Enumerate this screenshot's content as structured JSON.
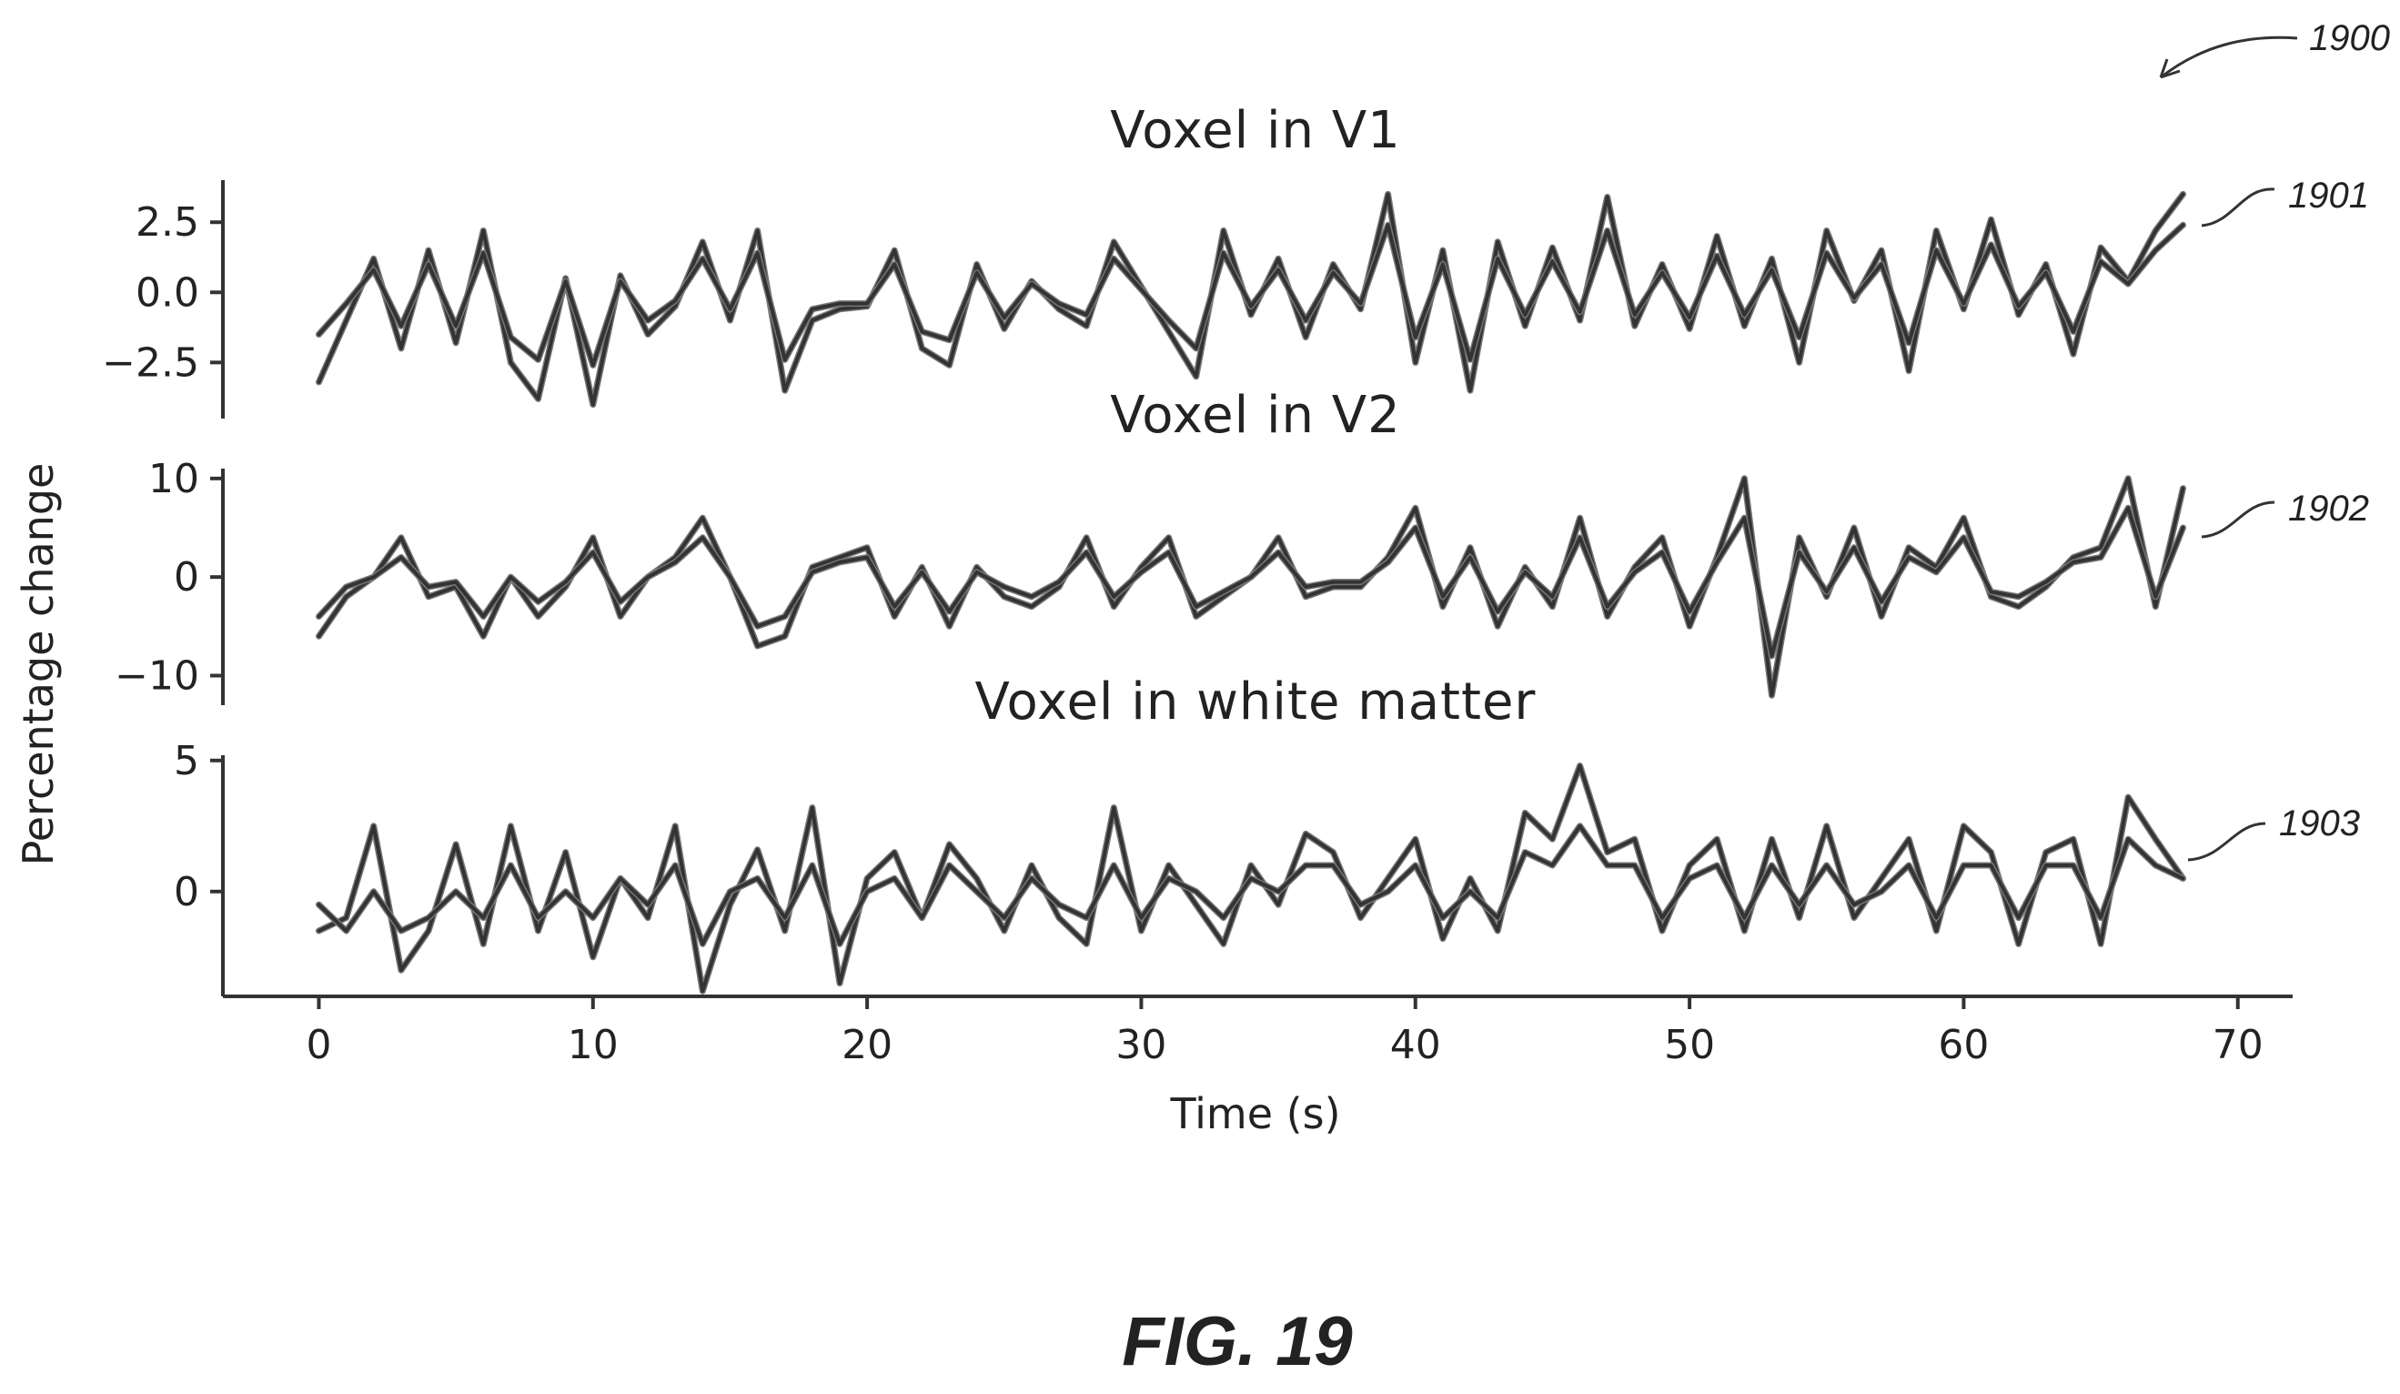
{
  "figure": {
    "caption": "FIG. 19",
    "ref_main": "1900",
    "ylabel": "Percentage change",
    "xlabel": "Time (s)"
  },
  "chart_data": [
    {
      "type": "line",
      "title": "Voxel in V1",
      "ref": "1901",
      "xlabel": "",
      "ylabel": "Percentage change",
      "xlim": [
        -3.5,
        72
      ],
      "ylim": [
        -4.5,
        4.0
      ],
      "yticks": [
        2.5,
        0.0,
        -2.5
      ],
      "ytick_labels": [
        "2.5",
        "0.0",
        "−2.5"
      ],
      "series": [
        {
          "x": [
            0,
            1,
            2,
            3,
            4,
            5,
            6,
            7,
            8,
            9,
            10,
            11,
            12,
            13,
            14,
            15,
            16,
            17,
            18,
            19,
            20,
            21,
            22,
            23,
            24,
            25,
            26,
            27,
            28,
            29,
            30,
            31,
            32,
            33,
            34,
            35,
            36,
            37,
            38,
            39,
            40,
            41,
            42,
            43,
            44,
            45,
            46,
            47,
            48,
            49,
            50,
            51,
            52,
            53,
            54,
            55,
            56,
            57,
            58,
            59,
            60,
            61,
            62,
            63,
            64,
            65,
            66,
            67,
            68
          ],
          "y": [
            -3.2,
            -1.0,
            1.2,
            -2.0,
            1.5,
            -1.8,
            2.2,
            -2.5,
            -3.8,
            0.5,
            -4.0,
            0.6,
            -1.5,
            -0.5,
            1.8,
            -1.0,
            2.2,
            -3.5,
            -1.0,
            -0.6,
            -0.5,
            1.5,
            -2.0,
            -2.6,
            1.0,
            -1.3,
            0.4,
            -0.6,
            -1.2,
            1.8,
            0.2,
            -1.4,
            -3.0,
            2.2,
            -0.8,
            1.2,
            -1.6,
            1.0,
            -0.6,
            3.5,
            -2.5,
            1.5,
            -3.5,
            1.8,
            -1.2,
            1.6,
            -1.0,
            3.4,
            -1.2,
            1.0,
            -1.3,
            2.0,
            -1.2,
            1.2,
            -2.5,
            2.2,
            -0.3,
            1.5,
            -2.8,
            2.2,
            -0.6,
            2.6,
            -0.8,
            1.0,
            -2.2,
            1.6,
            0.4,
            2.2,
            3.5
          ]
        },
        {
          "x": [
            0,
            1,
            2,
            3,
            4,
            5,
            6,
            7,
            8,
            9,
            10,
            11,
            12,
            13,
            14,
            15,
            16,
            17,
            18,
            19,
            20,
            21,
            22,
            23,
            24,
            25,
            26,
            27,
            28,
            29,
            30,
            31,
            32,
            33,
            34,
            35,
            36,
            37,
            38,
            39,
            40,
            41,
            42,
            43,
            44,
            45,
            46,
            47,
            48,
            49,
            50,
            51,
            52,
            53,
            54,
            55,
            56,
            57,
            58,
            59,
            60,
            61,
            62,
            63,
            64,
            65,
            66,
            67,
            68
          ],
          "y": [
            -1.5,
            -0.4,
            0.8,
            -1.2,
            1.0,
            -1.2,
            1.4,
            -1.6,
            -2.4,
            0.4,
            -2.6,
            0.4,
            -1.0,
            -0.3,
            1.2,
            -0.6,
            1.4,
            -2.4,
            -0.6,
            -0.4,
            -0.4,
            1.0,
            -1.4,
            -1.7,
            0.7,
            -0.9,
            0.3,
            -0.4,
            -0.8,
            1.2,
            0.1,
            -1.0,
            -2.0,
            1.4,
            -0.5,
            0.8,
            -1.0,
            0.7,
            -0.4,
            2.4,
            -1.6,
            1.0,
            -2.4,
            1.2,
            -0.8,
            1.1,
            -0.7,
            2.2,
            -0.8,
            0.7,
            -0.9,
            1.3,
            -0.8,
            0.8,
            -1.6,
            1.4,
            -0.2,
            1.0,
            -1.8,
            1.5,
            -0.4,
            1.7,
            -0.5,
            0.7,
            -1.4,
            1.1,
            0.3,
            1.5,
            2.4
          ]
        }
      ]
    },
    {
      "type": "line",
      "title": "Voxel in V2",
      "ref": "1902",
      "xlabel": "",
      "ylabel": "Percentage change",
      "xlim": [
        -3.5,
        72
      ],
      "ylim": [
        -13,
        11
      ],
      "yticks": [
        10,
        0,
        -10
      ],
      "ytick_labels": [
        "10",
        "0",
        "−10"
      ],
      "series": [
        {
          "x": [
            0,
            1,
            2,
            3,
            4,
            5,
            6,
            7,
            8,
            9,
            10,
            11,
            12,
            13,
            14,
            15,
            16,
            17,
            18,
            19,
            20,
            21,
            22,
            23,
            24,
            25,
            26,
            27,
            28,
            29,
            30,
            31,
            32,
            33,
            34,
            35,
            36,
            37,
            38,
            39,
            40,
            41,
            42,
            43,
            44,
            45,
            46,
            47,
            48,
            49,
            50,
            51,
            52,
            53,
            54,
            55,
            56,
            57,
            58,
            59,
            60,
            61,
            62,
            63,
            64,
            65,
            66,
            67,
            68
          ],
          "y": [
            -6,
            -2,
            0,
            4,
            -2,
            -1,
            -6,
            0,
            -4,
            -1,
            4,
            -4,
            0,
            2,
            6,
            0,
            -7,
            -6,
            1,
            2,
            3,
            -4,
            1,
            -5,
            1,
            -2,
            -3,
            -1,
            4,
            -3,
            1,
            4,
            -4,
            -2,
            0,
            4,
            -2,
            -1,
            -1,
            2,
            7,
            -3,
            3,
            -5,
            1,
            -3,
            6,
            -4,
            1,
            4,
            -5,
            2,
            10,
            -12,
            4,
            -2,
            5,
            -4,
            3,
            1,
            6,
            -2,
            -3,
            -1,
            2,
            3,
            10,
            -3,
            9
          ]
        },
        {
          "x": [
            0,
            1,
            2,
            3,
            4,
            5,
            6,
            7,
            8,
            9,
            10,
            11,
            12,
            13,
            14,
            15,
            16,
            17,
            18,
            19,
            20,
            21,
            22,
            23,
            24,
            25,
            26,
            27,
            28,
            29,
            30,
            31,
            32,
            33,
            34,
            35,
            36,
            37,
            38,
            39,
            40,
            41,
            42,
            43,
            44,
            45,
            46,
            47,
            48,
            49,
            50,
            51,
            52,
            53,
            54,
            55,
            56,
            57,
            58,
            59,
            60,
            61,
            62,
            63,
            64,
            65,
            66,
            67,
            68
          ],
          "y": [
            -4,
            -1,
            0,
            2,
            -1,
            -0.5,
            -4,
            0,
            -2.5,
            -0.5,
            2.5,
            -2.5,
            0,
            1.5,
            4,
            0,
            -5,
            -4,
            0.5,
            1.5,
            2,
            -3,
            0.5,
            -3.5,
            0.5,
            -1,
            -2,
            -0.5,
            2.5,
            -2,
            0.5,
            2.5,
            -3,
            -1.5,
            0,
            2.5,
            -1,
            -0.5,
            -0.5,
            1.5,
            5,
            -2,
            2,
            -3.5,
            0.5,
            -2,
            4,
            -3,
            0.5,
            2.5,
            -3.5,
            1.5,
            6,
            -8,
            2.5,
            -1.5,
            3,
            -2.5,
            2,
            0.5,
            4,
            -1.5,
            -2,
            -0.5,
            1.5,
            2,
            7,
            -2,
            5
          ]
        }
      ]
    },
    {
      "type": "line",
      "title": "Voxel in white matter",
      "ref": "1903",
      "xlabel": "Time (s)",
      "ylabel": "Percentage change",
      "xlim": [
        -3.5,
        72
      ],
      "ylim": [
        -4,
        5.2
      ],
      "yticks": [
        5,
        0
      ],
      "ytick_labels": [
        "5",
        "0"
      ],
      "xticks": [
        0,
        10,
        20,
        30,
        40,
        50,
        60,
        70
      ],
      "xtick_labels": [
        "0",
        "10",
        "20",
        "30",
        "40",
        "50",
        "60",
        "70"
      ],
      "series": [
        {
          "x": [
            0,
            1,
            2,
            3,
            4,
            5,
            6,
            7,
            8,
            9,
            10,
            11,
            12,
            13,
            14,
            15,
            16,
            17,
            18,
            19,
            20,
            21,
            22,
            23,
            24,
            25,
            26,
            27,
            28,
            29,
            30,
            31,
            32,
            33,
            34,
            35,
            36,
            37,
            38,
            39,
            40,
            41,
            42,
            43,
            44,
            45,
            46,
            47,
            48,
            49,
            50,
            51,
            52,
            53,
            54,
            55,
            56,
            57,
            58,
            59,
            60,
            61,
            62,
            63,
            64,
            65,
            66,
            67,
            68
          ],
          "y": [
            -1.5,
            -1,
            2.5,
            -3,
            -1.5,
            1.8,
            -2,
            2.5,
            -1.5,
            1.5,
            -2.5,
            0.5,
            -1,
            2.5,
            -3.8,
            -0.5,
            1.6,
            -1.5,
            3.2,
            -3.5,
            0.5,
            1.5,
            -1,
            1.8,
            0.5,
            -1.5,
            1,
            -1,
            -2,
            3.2,
            -1.5,
            1,
            -0.5,
            -2,
            1,
            -0.5,
            2.2,
            1.5,
            -1,
            0.5,
            2,
            -1.8,
            0.5,
            -1.5,
            3,
            2,
            4.8,
            1.5,
            2,
            -1.5,
            1,
            2,
            -1.5,
            2,
            -1,
            2.5,
            -1,
            0.5,
            2,
            -1.5,
            2.5,
            1.5,
            -2,
            1.5,
            2,
            -2,
            3.6,
            2,
            0.5
          ]
        },
        {
          "x": [
            0,
            1,
            2,
            3,
            4,
            5,
            6,
            7,
            8,
            9,
            10,
            11,
            12,
            13,
            14,
            15,
            16,
            17,
            18,
            19,
            20,
            21,
            22,
            23,
            24,
            25,
            26,
            27,
            28,
            29,
            30,
            31,
            32,
            33,
            34,
            35,
            36,
            37,
            38,
            39,
            40,
            41,
            42,
            43,
            44,
            45,
            46,
            47,
            48,
            49,
            50,
            51,
            52,
            53,
            54,
            55,
            56,
            57,
            58,
            59,
            60,
            61,
            62,
            63,
            64,
            65,
            66,
            67,
            68
          ],
          "y": [
            -0.5,
            -1.5,
            0,
            -1.5,
            -1,
            0,
            -1,
            1,
            -1,
            0,
            -1,
            0.5,
            -0.5,
            1,
            -2,
            0,
            0.5,
            -1,
            1,
            -2,
            0,
            0.5,
            -1,
            1,
            0,
            -1,
            0.5,
            -0.5,
            -1,
            1,
            -1,
            0.5,
            0,
            -1,
            0.5,
            0,
            1,
            1,
            -0.5,
            0,
            1,
            -1,
            0,
            -1,
            1.5,
            1,
            2.5,
            1,
            1,
            -1,
            0.5,
            1,
            -1,
            1,
            -0.5,
            1,
            -0.5,
            0,
            1,
            -1,
            1,
            1,
            -1,
            1,
            1,
            -1,
            2,
            1,
            0.5
          ]
        }
      ]
    }
  ]
}
